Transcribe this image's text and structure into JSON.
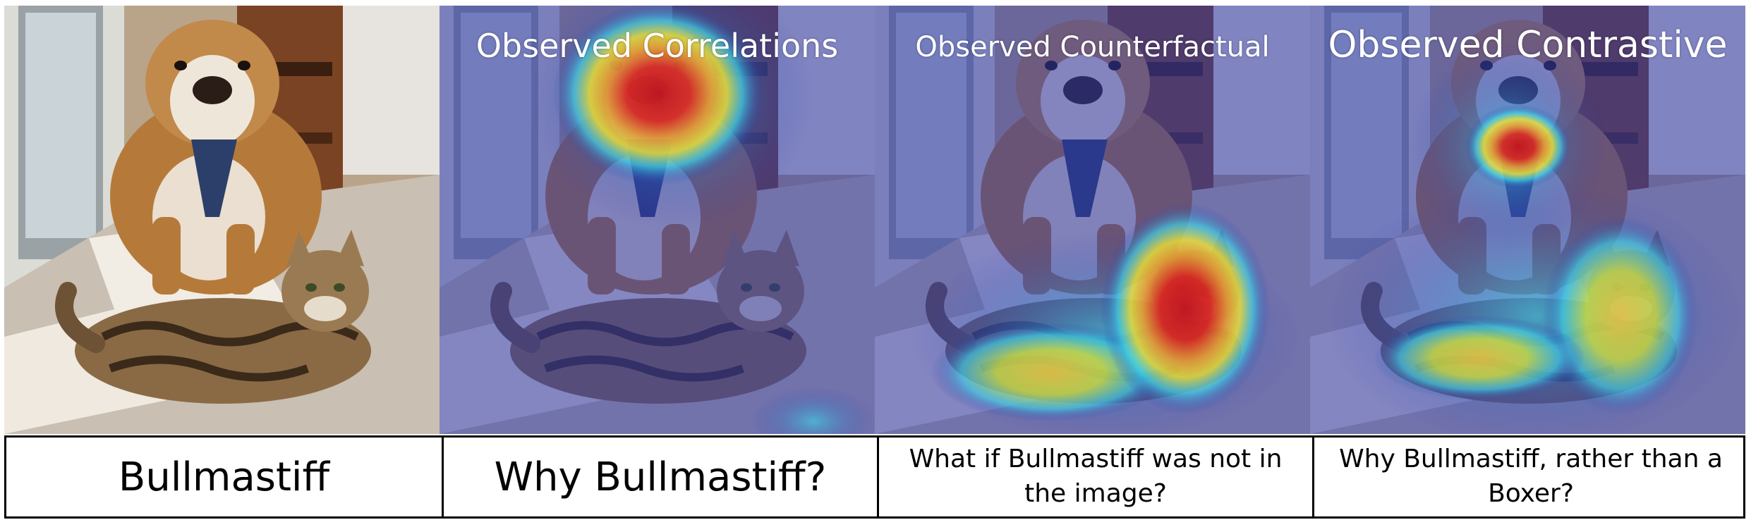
{
  "panels": [
    {
      "id": "original",
      "title": ""
    },
    {
      "id": "correlations",
      "title": "Observed Correlations"
    },
    {
      "id": "counterfactual",
      "title": "Observed Counterfactual"
    },
    {
      "id": "contrastive",
      "title": "Observed Contrastive"
    }
  ],
  "captions": [
    "Bullmastiff",
    "Why Bullmastiff?",
    "What if Bullmastiff was not in the image?",
    "Why Bullmastiff, rather than a Boxer?"
  ],
  "colors": {
    "heat_red": "#e0241a",
    "heat_yellow": "#f2e632",
    "heat_cyan": "#3fd2e6",
    "overlay_blue": "#2b34a8"
  }
}
